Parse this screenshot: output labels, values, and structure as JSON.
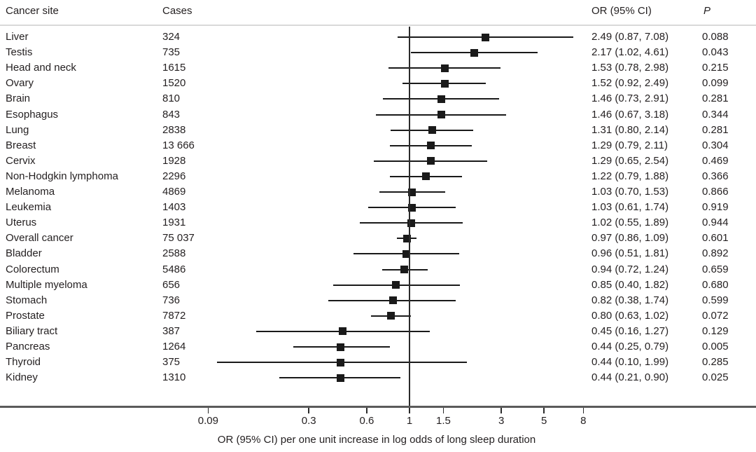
{
  "header": {
    "site": "Cancer site",
    "cases": "Cases",
    "or_ci": "OR (95% CI)",
    "p": "P"
  },
  "axis": {
    "caption": "OR (95% CI) per one unit increase in log odds of long sleep duration",
    "tick_labels": [
      "0.09",
      "0.3",
      "0.6",
      "1",
      "1.5",
      "3",
      "5",
      "8"
    ]
  },
  "colors": {
    "text": "#231f20",
    "marker": "#1a1a1a",
    "ci_line": "#1a1a1a",
    "reference_line": "#2b2b2b",
    "header_rule": "#d9d9d9",
    "axis_rule": "#5a5a5a",
    "background": "#ffffff"
  },
  "chart_data": {
    "type": "scatter",
    "subtype": "forest-plot",
    "title": "",
    "xlabel": "OR (95% CI) per one unit increase in log odds of long sleep duration",
    "x_scale": "log10",
    "x_ticks": [
      0.09,
      0.3,
      0.6,
      1,
      1.5,
      3,
      5,
      8
    ],
    "xlim": [
      0.075,
      9.5
    ],
    "reference_line": 1,
    "grid": false,
    "legend": "none",
    "columns": [
      "Cancer site",
      "Cases",
      "OR (95% CI)",
      "P"
    ],
    "rows": [
      {
        "site": "Liver",
        "cases": "324",
        "or": 2.49,
        "ci_low": 0.87,
        "ci_high": 7.08,
        "or_text": "2.49 (0.87, 7.08)",
        "p": "0.088"
      },
      {
        "site": "Testis",
        "cases": "735",
        "or": 2.17,
        "ci_low": 1.02,
        "ci_high": 4.61,
        "or_text": "2.17 (1.02, 4.61)",
        "p": "0.043"
      },
      {
        "site": "Head and neck",
        "cases": "1615",
        "or": 1.53,
        "ci_low": 0.78,
        "ci_high": 2.98,
        "or_text": "1.53 (0.78, 2.98)",
        "p": "0.215"
      },
      {
        "site": "Ovary",
        "cases": "1520",
        "or": 1.52,
        "ci_low": 0.92,
        "ci_high": 2.49,
        "or_text": "1.52 (0.92, 2.49)",
        "p": "0.099"
      },
      {
        "site": "Brain",
        "cases": "810",
        "or": 1.46,
        "ci_low": 0.73,
        "ci_high": 2.91,
        "or_text": "1.46 (0.73, 2.91)",
        "p": "0.281"
      },
      {
        "site": "Esophagus",
        "cases": "843",
        "or": 1.46,
        "ci_low": 0.67,
        "ci_high": 3.18,
        "or_text": "1.46 (0.67, 3.18)",
        "p": "0.344"
      },
      {
        "site": "Lung",
        "cases": "2838",
        "or": 1.31,
        "ci_low": 0.8,
        "ci_high": 2.14,
        "or_text": "1.31 (0.80, 2.14)",
        "p": "0.281"
      },
      {
        "site": "Breast",
        "cases": "13 666",
        "or": 1.29,
        "ci_low": 0.79,
        "ci_high": 2.11,
        "or_text": "1.29 (0.79, 2.11)",
        "p": "0.304"
      },
      {
        "site": "Cervix",
        "cases": "1928",
        "or": 1.29,
        "ci_low": 0.65,
        "ci_high": 2.54,
        "or_text": "1.29 (0.65, 2.54)",
        "p": "0.469"
      },
      {
        "site": "Non-Hodgkin lymphoma",
        "cases": "2296",
        "or": 1.22,
        "ci_low": 0.79,
        "ci_high": 1.88,
        "or_text": "1.22 (0.79, 1.88)",
        "p": "0.366"
      },
      {
        "site": "Melanoma",
        "cases": "4869",
        "or": 1.03,
        "ci_low": 0.7,
        "ci_high": 1.53,
        "or_text": "1.03 (0.70, 1.53)",
        "p": "0.866"
      },
      {
        "site": "Leukemia",
        "cases": "1403",
        "or": 1.03,
        "ci_low": 0.61,
        "ci_high": 1.74,
        "or_text": "1.03 (0.61, 1.74)",
        "p": "0.919"
      },
      {
        "site": "Uterus",
        "cases": "1931",
        "or": 1.02,
        "ci_low": 0.55,
        "ci_high": 1.89,
        "or_text": "1.02 (0.55, 1.89)",
        "p": "0.944"
      },
      {
        "site": "Overall cancer",
        "cases": "75 037",
        "or": 0.97,
        "ci_low": 0.86,
        "ci_high": 1.09,
        "or_text": "0.97 (0.86, 1.09)",
        "p": "0.601"
      },
      {
        "site": "Bladder",
        "cases": "2588",
        "or": 0.96,
        "ci_low": 0.51,
        "ci_high": 1.81,
        "or_text": "0.96 (0.51, 1.81)",
        "p": "0.892"
      },
      {
        "site": "Colorectum",
        "cases": "5486",
        "or": 0.94,
        "ci_low": 0.72,
        "ci_high": 1.24,
        "or_text": "0.94 (0.72, 1.24)",
        "p": "0.659"
      },
      {
        "site": "Multiple myeloma",
        "cases": "656",
        "or": 0.85,
        "ci_low": 0.4,
        "ci_high": 1.82,
        "or_text": "0.85 (0.40, 1.82)",
        "p": "0.680"
      },
      {
        "site": "Stomach",
        "cases": "736",
        "or": 0.82,
        "ci_low": 0.38,
        "ci_high": 1.74,
        "or_text": "0.82 (0.38, 1.74)",
        "p": "0.599"
      },
      {
        "site": "Prostate",
        "cases": "7872",
        "or": 0.8,
        "ci_low": 0.63,
        "ci_high": 1.02,
        "or_text": "0.80 (0.63, 1.02)",
        "p": "0.072"
      },
      {
        "site": "Biliary tract",
        "cases": "387",
        "or": 0.45,
        "ci_low": 0.16,
        "ci_high": 1.27,
        "or_text": "0.45 (0.16, 1.27)",
        "p": "0.129"
      },
      {
        "site": "Pancreas",
        "cases": "1264",
        "or": 0.44,
        "ci_low": 0.25,
        "ci_high": 0.79,
        "or_text": "0.44 (0.25, 0.79)",
        "p": "0.005"
      },
      {
        "site": "Thyroid",
        "cases": "375",
        "or": 0.44,
        "ci_low": 0.1,
        "ci_high": 1.99,
        "or_text": "0.44 (0.10, 1.99)",
        "p": "0.285"
      },
      {
        "site": "Kidney",
        "cases": "1310",
        "or": 0.44,
        "ci_low": 0.21,
        "ci_high": 0.9,
        "or_text": "0.44 (0.21, 0.90)",
        "p": "0.025"
      }
    ]
  }
}
